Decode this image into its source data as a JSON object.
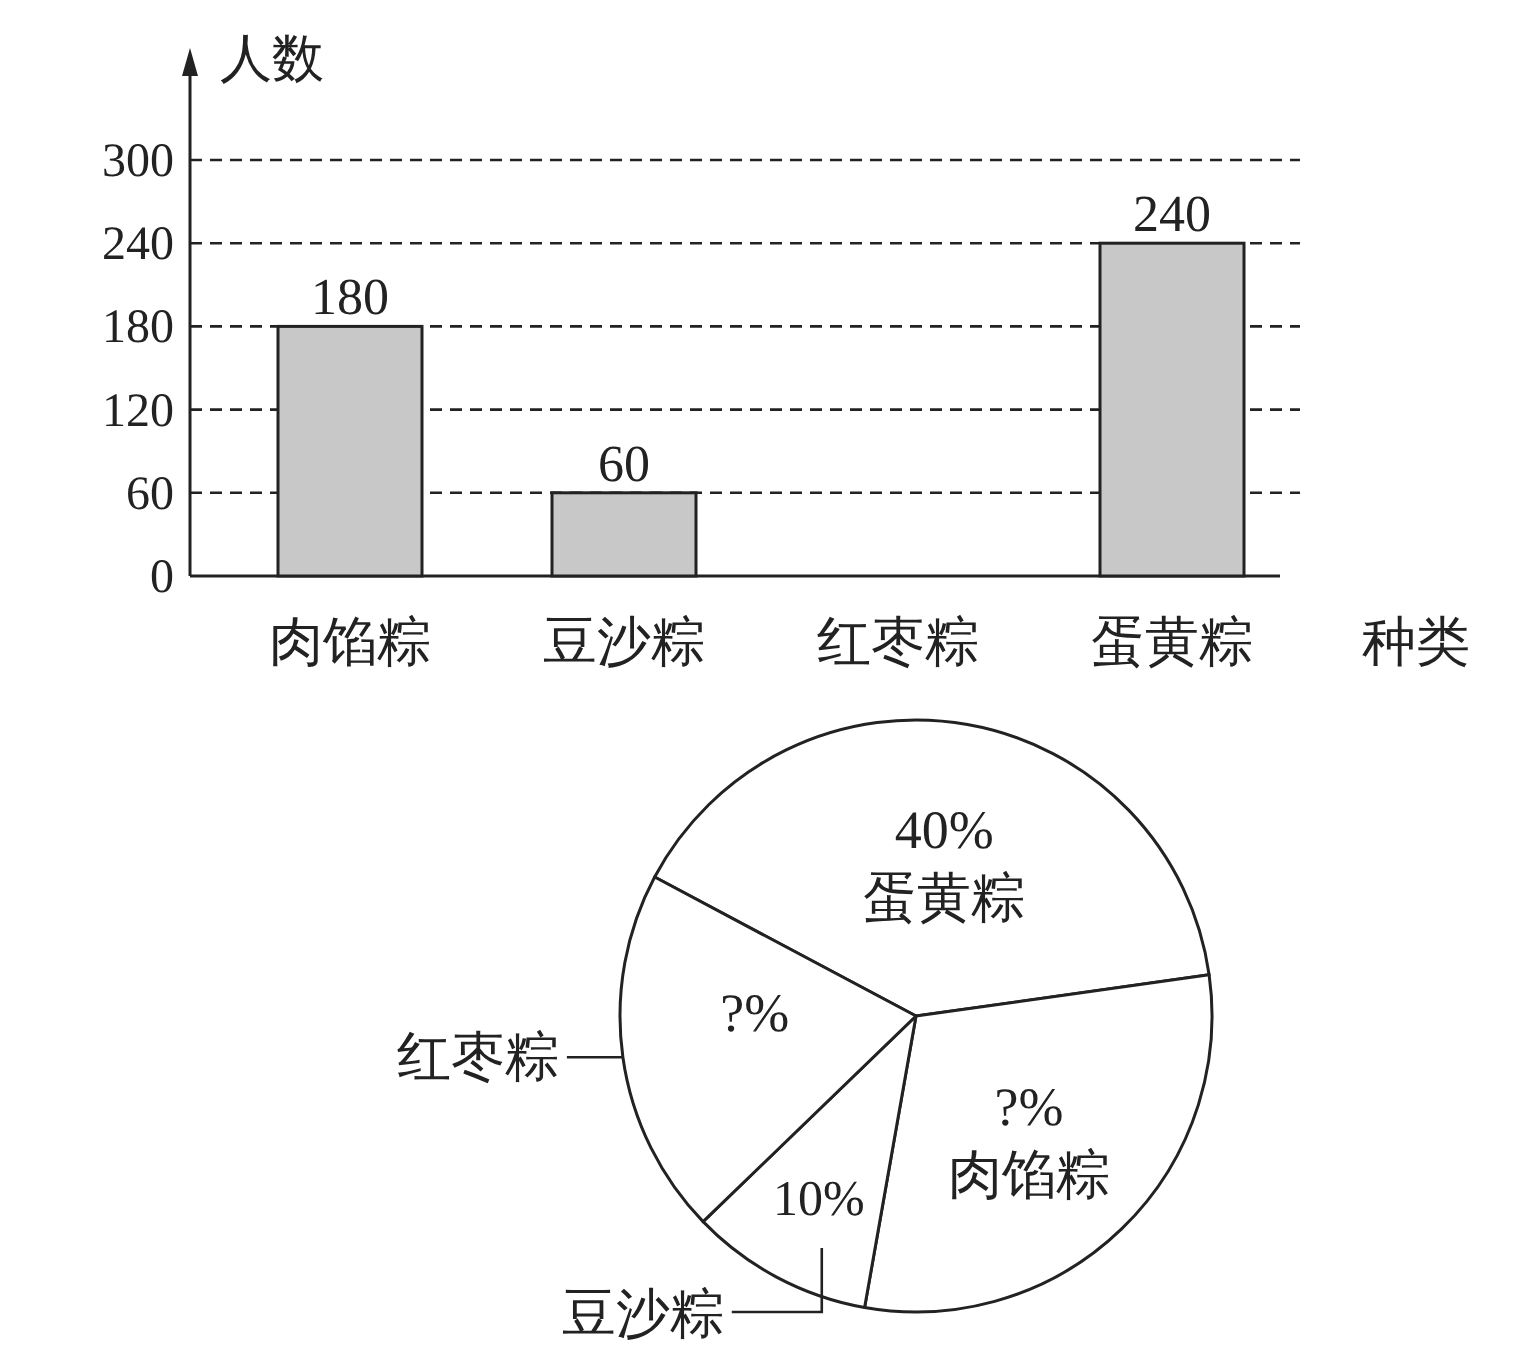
{
  "chart_data": [
    {
      "type": "bar",
      "xlabel": "种类",
      "ylabel": "人数",
      "categories": [
        "肉馅粽",
        "豆沙粽",
        "红枣粽",
        "蛋黄粽"
      ],
      "values": [
        180,
        60,
        null,
        240
      ],
      "color": "#c8c8c8",
      "ylim": [
        0,
        300
      ],
      "yticks": [
        0,
        60,
        120,
        180,
        240,
        300
      ],
      "grid": "y",
      "data_labels": true
    },
    {
      "type": "pie",
      "categories": [
        "蛋黄粽",
        "肉馅粽",
        "豆沙粽",
        "红枣粽"
      ],
      "values": [
        40,
        30,
        10,
        20
      ],
      "colors": [
        "#ffffff",
        "#ffffff",
        "#ffffff",
        "#ffffff"
      ],
      "value_labels": [
        "40%",
        "?%",
        "10%",
        "?%"
      ]
    }
  ]
}
